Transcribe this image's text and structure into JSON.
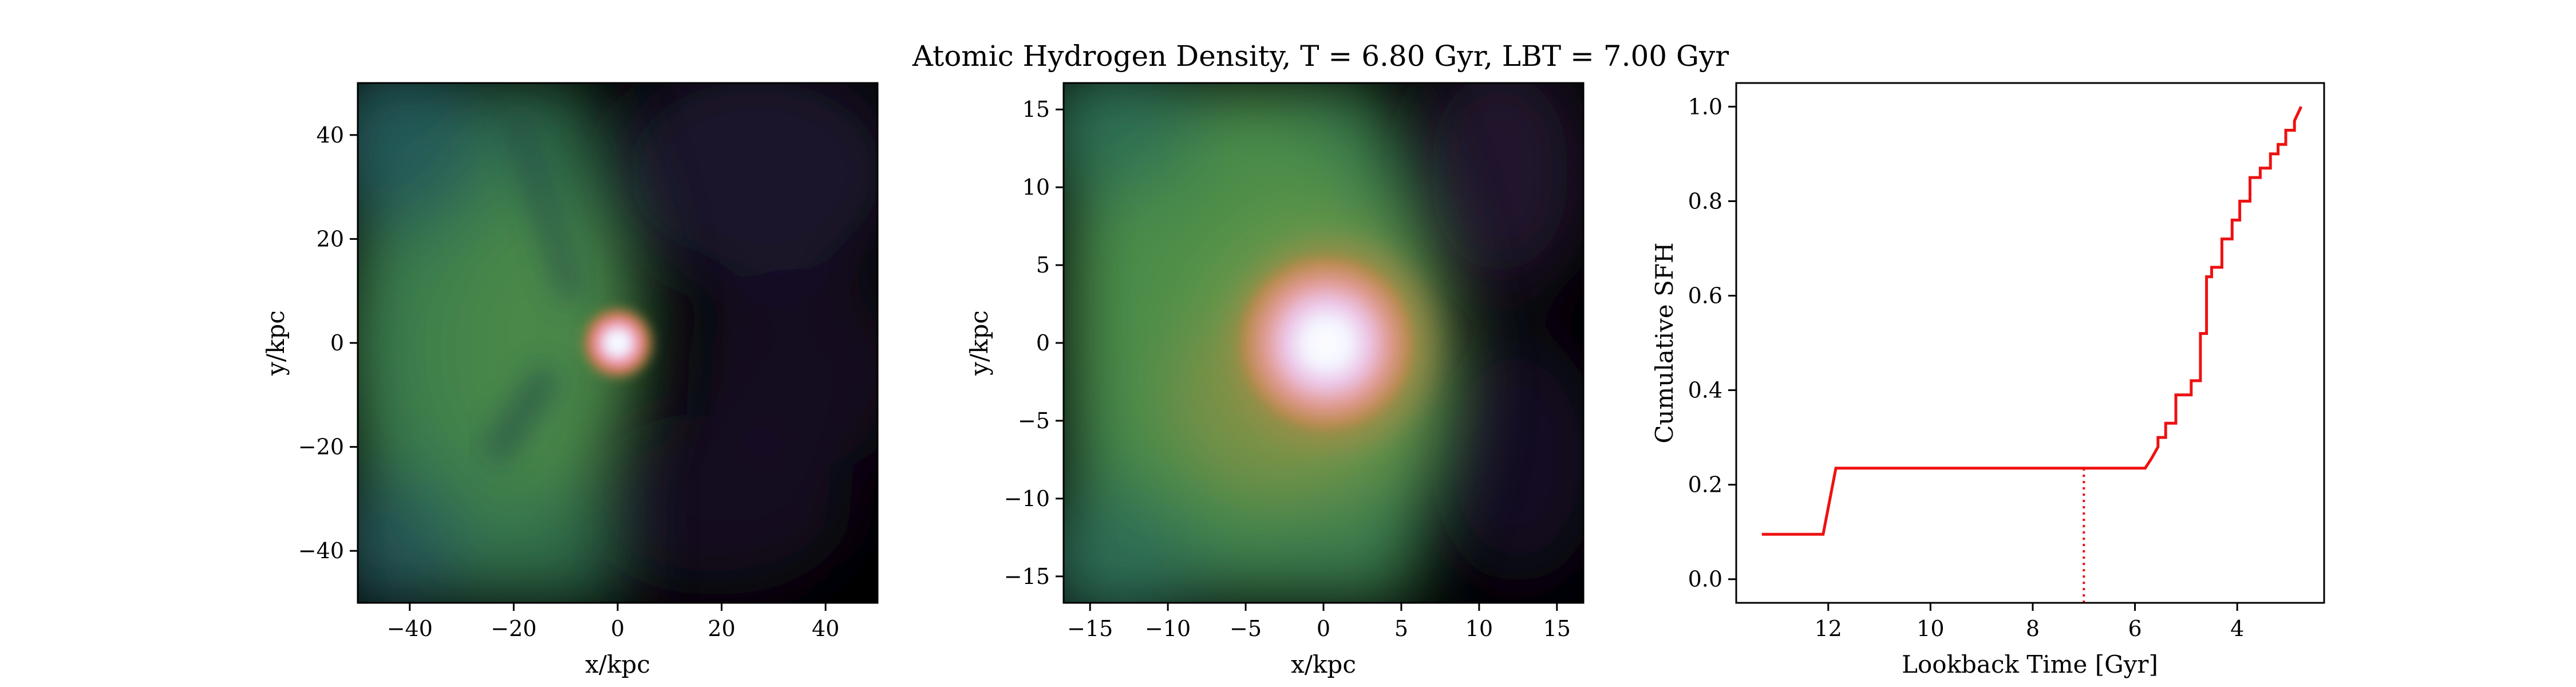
{
  "figure": {
    "title": "Atomic Hydrogen Density, T = 6.80 Gyr, LBT = 7.00 Gyr"
  },
  "chart_data": [
    {
      "type": "heatmap",
      "panel": "left",
      "title": "",
      "xlabel": "x/kpc",
      "ylabel": "y/kpc",
      "xlim": [
        -50,
        50
      ],
      "ylim": [
        -50,
        50
      ],
      "xticks": [
        -40,
        -20,
        0,
        20,
        40
      ],
      "yticks": [
        -40,
        -20,
        0,
        20,
        40
      ],
      "colormap": "cubehelix",
      "grid": false,
      "peak": {
        "x": 0,
        "y": 0
      }
    },
    {
      "type": "heatmap",
      "panel": "middle",
      "title": "",
      "xlabel": "x/kpc",
      "ylabel": "y/kpc",
      "xlim": [
        -16.7,
        16.7
      ],
      "ylim": [
        -16.7,
        16.7
      ],
      "xticks": [
        -15,
        -10,
        -5,
        0,
        5,
        10,
        15
      ],
      "yticks": [
        -15,
        -10,
        -5,
        0,
        5,
        10,
        15
      ],
      "colormap": "cubehelix",
      "grid": false,
      "peak": {
        "x": 0,
        "y": 0
      }
    },
    {
      "type": "line",
      "panel": "right",
      "title": "",
      "xlabel": "Lookback Time [Gyr]",
      "ylabel": "Cumulative SFH",
      "xlim": [
        13.8,
        2.3
      ],
      "ylim": [
        -0.05,
        1.05
      ],
      "xticks": [
        12,
        10,
        8,
        6,
        4
      ],
      "yticks": [
        0.0,
        0.2,
        0.4,
        0.6,
        0.8,
        1.0
      ],
      "grid": false,
      "line_color": "#ee1111",
      "series": [
        {
          "x": [
            13.3,
            12.1,
            11.85,
            5.8,
            5.68,
            5.55,
            5.55,
            5.4,
            5.4,
            5.2,
            5.2,
            4.9,
            4.9,
            4.72,
            4.72,
            4.6,
            4.6,
            4.5,
            4.5,
            4.3,
            4.3,
            4.1,
            4.1,
            3.95,
            3.95,
            3.75,
            3.75,
            3.55,
            3.55,
            3.35,
            3.35,
            3.2,
            3.2,
            3.05,
            3.05,
            2.88,
            2.88,
            2.75
          ],
          "y": [
            0.095,
            0.095,
            0.235,
            0.235,
            0.255,
            0.28,
            0.3,
            0.3,
            0.33,
            0.33,
            0.39,
            0.39,
            0.42,
            0.42,
            0.52,
            0.52,
            0.64,
            0.64,
            0.66,
            0.66,
            0.72,
            0.72,
            0.76,
            0.76,
            0.8,
            0.8,
            0.85,
            0.85,
            0.87,
            0.87,
            0.9,
            0.9,
            0.92,
            0.92,
            0.95,
            0.95,
            0.97,
            1.0
          ]
        }
      ],
      "annotations": [
        {
          "type": "vline",
          "x": 7.0,
          "y_from": 0.0,
          "y_to": 0.235,
          "style": "dotted"
        }
      ]
    }
  ]
}
